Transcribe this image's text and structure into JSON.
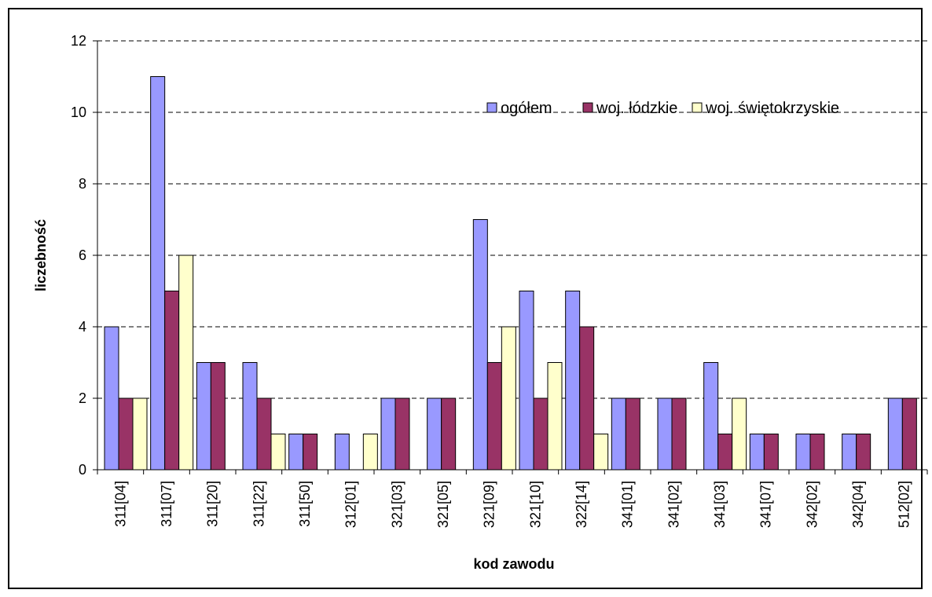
{
  "chart_data": {
    "type": "bar",
    "xlabel": "kod zawodu",
    "ylabel": "liczebność",
    "ylim": [
      0,
      12
    ],
    "yticks": [
      0,
      2,
      4,
      6,
      8,
      10,
      12
    ],
    "grid": "horizontal dashed",
    "legend_position": "top-right",
    "categories": [
      "311[04]",
      "311[07]",
      "311[20]",
      "311[22]",
      "311[50]",
      "312[01]",
      "321[03]",
      "321[05]",
      "321[09]",
      "321[10]",
      "322[14]",
      "341[01]",
      "341[02]",
      "341[03]",
      "341[07]",
      "342[02]",
      "342[04]",
      "512[02]"
    ],
    "series": [
      {
        "name": "ogółem",
        "color": "#9999ff",
        "values": [
          4,
          11,
          3,
          3,
          1,
          1,
          2,
          2,
          7,
          5,
          5,
          2,
          2,
          3,
          1,
          1,
          1,
          2
        ]
      },
      {
        "name": "woj. łódzkie",
        "color": "#993366",
        "values": [
          2,
          5,
          3,
          2,
          1,
          0,
          2,
          2,
          3,
          2,
          4,
          2,
          2,
          1,
          1,
          1,
          1,
          2
        ]
      },
      {
        "name": "woj. świętokrzyskie",
        "color": "#ffffcc",
        "values": [
          2,
          6,
          0,
          1,
          0,
          1,
          0,
          0,
          4,
          3,
          1,
          0,
          0,
          2,
          0,
          0,
          0,
          0
        ]
      }
    ]
  }
}
